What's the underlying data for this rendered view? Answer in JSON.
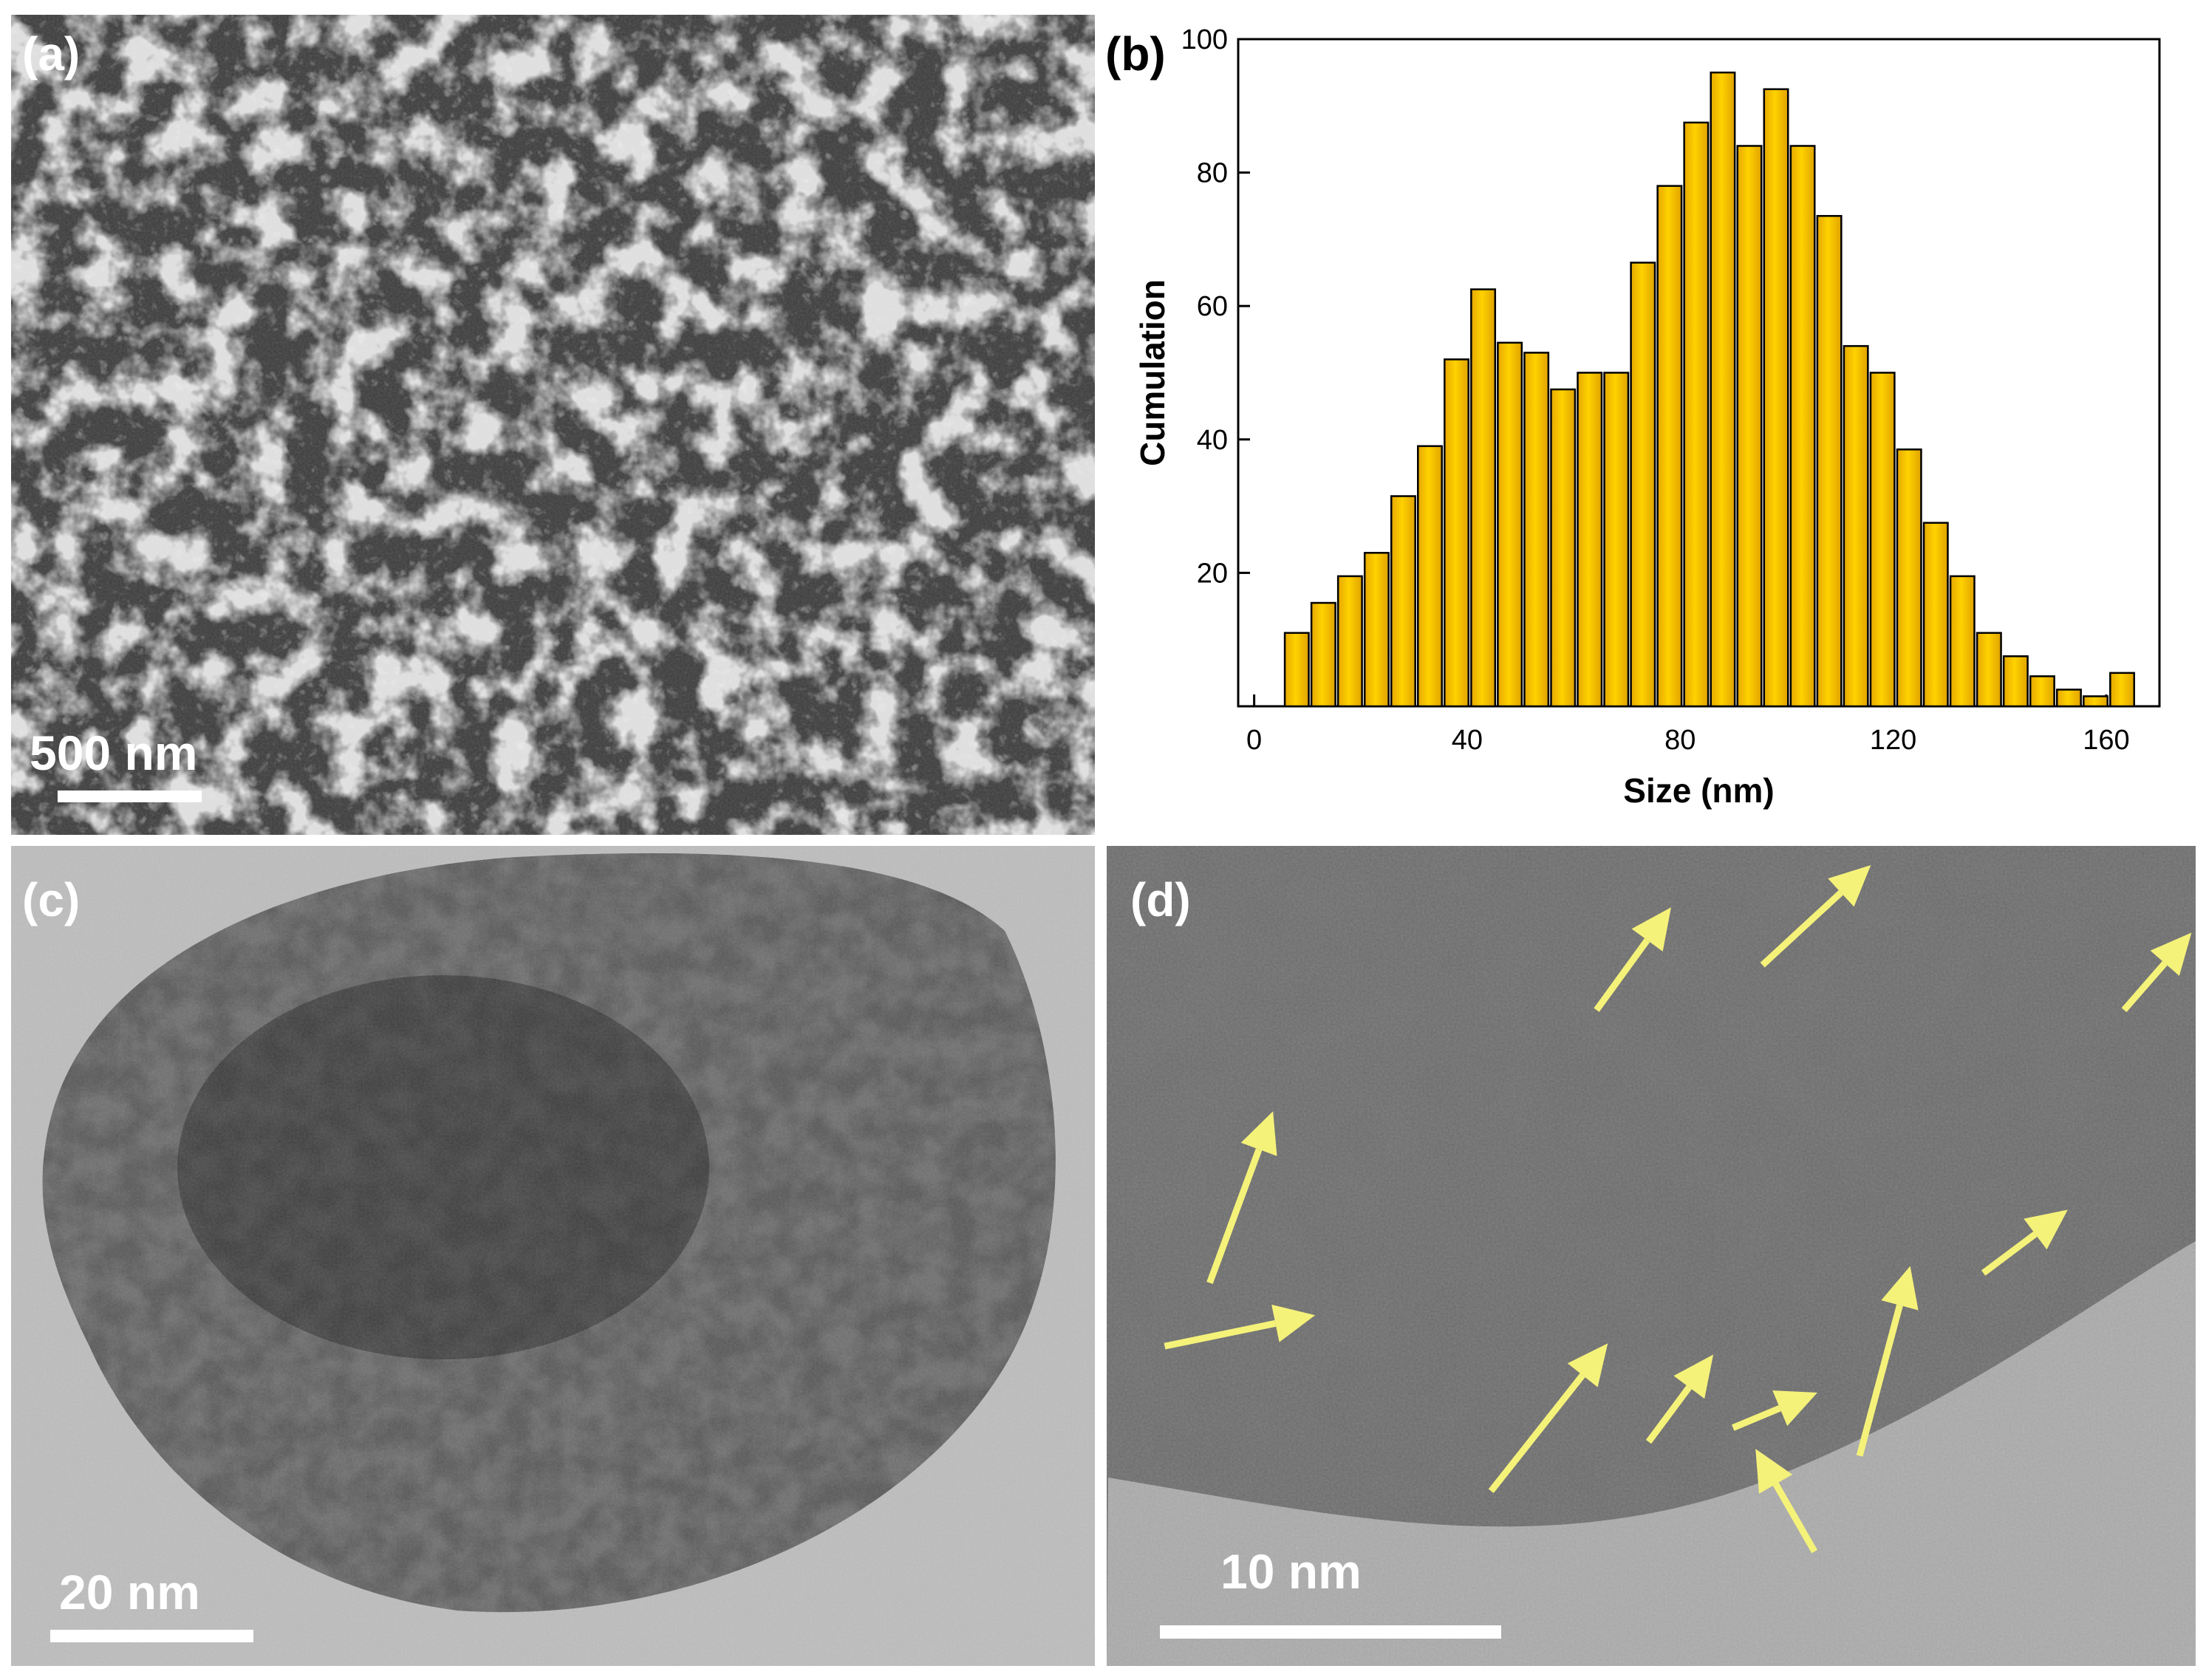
{
  "panels": {
    "a": {
      "label": "(a)",
      "scale_bar": "500 nm"
    },
    "b": {
      "label": "(b)"
    },
    "c": {
      "label": "(c)",
      "scale_bar": "20 nm"
    },
    "d": {
      "label": "(d)",
      "scale_bar": "10 nm"
    }
  },
  "chart_data": {
    "type": "bar",
    "x_label": "Size (nm)",
    "y_label": "Cumulation",
    "x": [
      8,
      13,
      18,
      23,
      28,
      33,
      38,
      43,
      48,
      53,
      58,
      63,
      68,
      73,
      78,
      83,
      88,
      93,
      98,
      103,
      108,
      113,
      118,
      123,
      128,
      133,
      138,
      143,
      148,
      153,
      158,
      163
    ],
    "values": [
      11,
      15.5,
      19.5,
      23,
      31.5,
      39,
      52,
      62.5,
      54.5,
      53,
      47.5,
      50,
      50,
      66.5,
      78,
      87.5,
      95,
      84,
      92.5,
      84,
      73.5,
      54,
      50,
      38.5,
      27.5,
      19.5,
      11,
      7.5,
      4.5,
      2.5,
      1.5,
      5
    ],
    "color": "#ffd200",
    "xlim": [
      -3,
      170
    ],
    "xticks": [
      0,
      40,
      80,
      120,
      160
    ],
    "ylim": [
      0,
      100
    ],
    "yticks": [
      20,
      40,
      60,
      80,
      100
    ]
  }
}
